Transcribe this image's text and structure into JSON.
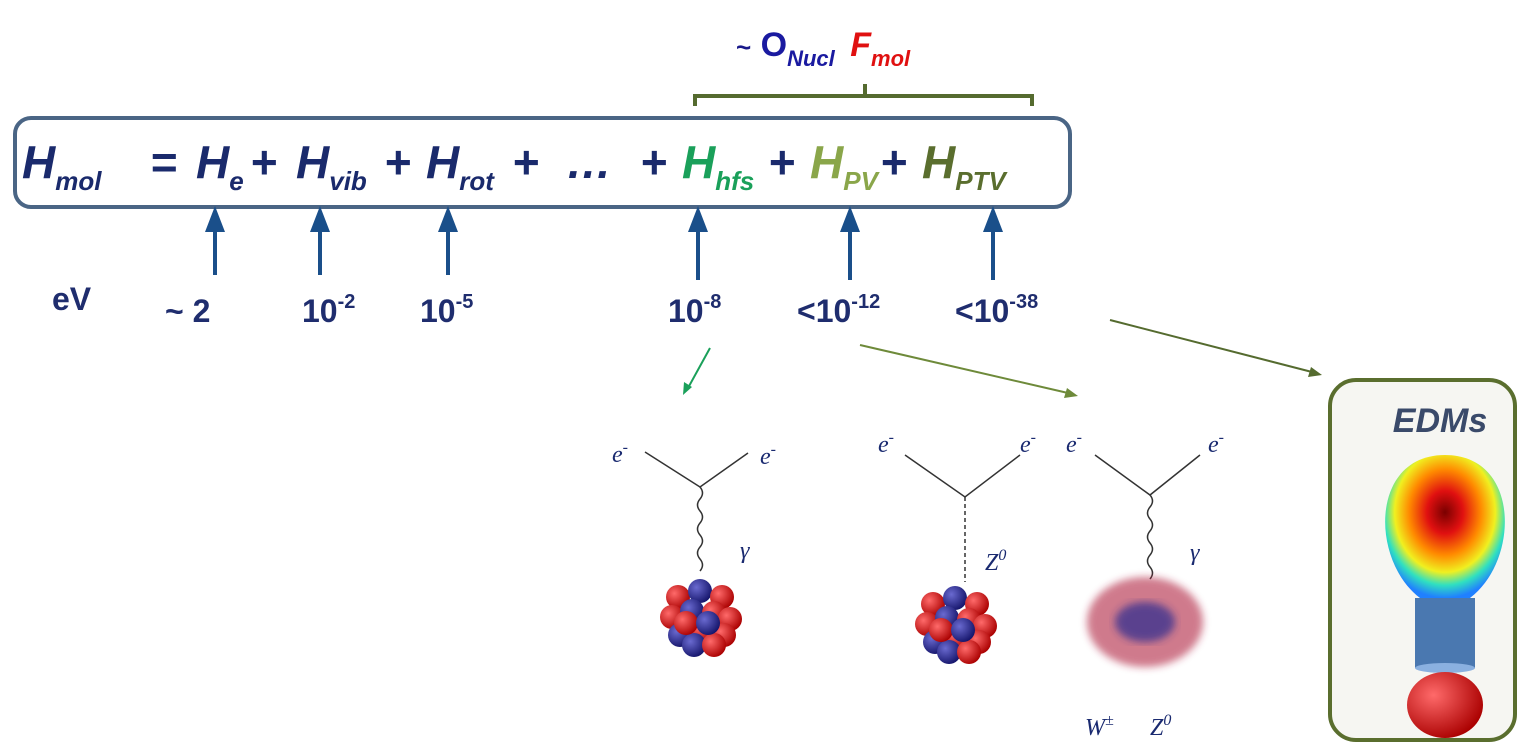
{
  "bracket_label": {
    "prefix": "~",
    "operator": "O",
    "operator_sub": "Nucl",
    "factor": "F",
    "factor_sub": "mol"
  },
  "equation": {
    "tokens": [
      {
        "text": "H",
        "sub": "mol"
      },
      {
        "text": "="
      },
      {
        "text": "H",
        "sub": "e"
      },
      {
        "text": "+"
      },
      {
        "text": "H",
        "sub": "vib"
      },
      {
        "text": "+"
      },
      {
        "text": "H",
        "sub": "rot"
      },
      {
        "text": "+"
      },
      {
        "text": "…"
      },
      {
        "text": "+"
      },
      {
        "text": "H",
        "sub": "hfs"
      },
      {
        "text": "+"
      },
      {
        "text": "H",
        "sub": "PV"
      },
      {
        "text": "+"
      },
      {
        "text": "H",
        "sub": "PTV"
      }
    ]
  },
  "scales": {
    "unit": "eV",
    "values": [
      {
        "base": "~ 2"
      },
      {
        "base": "10",
        "exp": "-2"
      },
      {
        "base": "10",
        "exp": "-5"
      },
      {
        "base": "10",
        "exp": "-8"
      },
      {
        "base": "<10",
        "exp": "-12"
      },
      {
        "base": "<10",
        "exp": "-38"
      }
    ]
  },
  "feynman": [
    {
      "left": "e",
      "left_sup": "-",
      "right": "e",
      "right_sup": "-",
      "boson": "γ"
    },
    {
      "left": "e",
      "left_sup": "-",
      "right": "e",
      "right_sup": "-",
      "boson": "Z",
      "boson_sup": "0"
    },
    {
      "left": "e",
      "left_sup": "-",
      "right": "e",
      "right_sup": "-",
      "boson": "γ",
      "exchange": "W",
      "exchange_sup": "±",
      "exchange2": "Z",
      "exchange2_sup": "0"
    }
  ],
  "edm_box": {
    "label": "EDMs"
  }
}
